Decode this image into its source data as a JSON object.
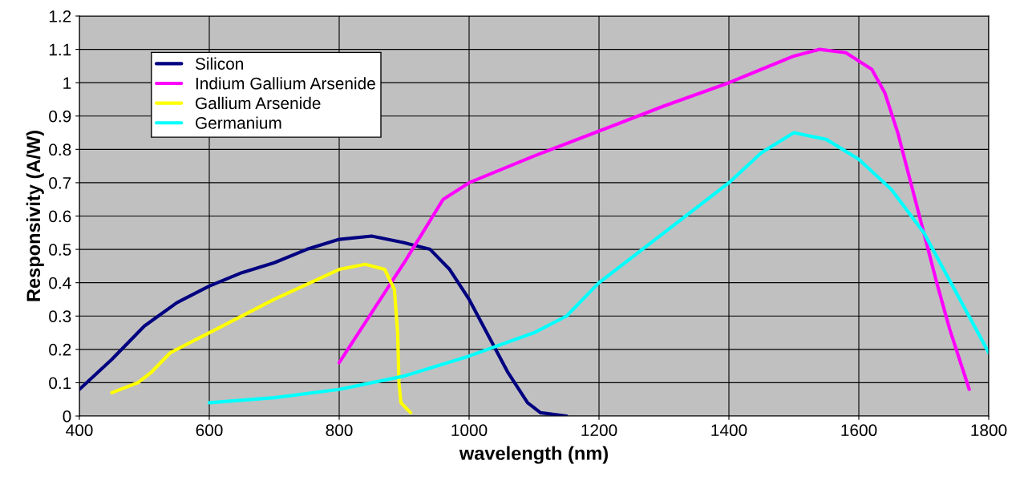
{
  "chart_data": {
    "type": "line",
    "xlabel": "wavelength (nm)",
    "ylabel": "Responsivity (A/W)",
    "xlim": [
      400,
      1800
    ],
    "xticks": [
      400,
      600,
      800,
      1000,
      1200,
      1400,
      1600,
      1800
    ],
    "ylim": [
      0,
      1.2
    ],
    "yticks": [
      0,
      0.1,
      0.2,
      0.3,
      0.4,
      0.5,
      0.6,
      0.7,
      0.8,
      0.9,
      1,
      1.1,
      1.2
    ],
    "grid": true,
    "legend": "top left",
    "marker": "none",
    "line_style": "solid",
    "series": [
      {
        "name": "Silicon",
        "color": "#000080",
        "x": [
          400,
          450,
          500,
          550,
          600,
          650,
          700,
          750,
          800,
          850,
          900,
          940,
          970,
          1000,
          1030,
          1060,
          1090,
          1110,
          1150
        ],
        "values": [
          0.08,
          0.17,
          0.27,
          0.34,
          0.39,
          0.43,
          0.46,
          0.5,
          0.53,
          0.54,
          0.52,
          0.5,
          0.44,
          0.35,
          0.24,
          0.13,
          0.04,
          0.01,
          0.0
        ]
      },
      {
        "name": "Indium Gallium Arsenide",
        "color": "#ff00ff",
        "x": [
          800,
          900,
          960,
          1000,
          1100,
          1200,
          1300,
          1400,
          1450,
          1500,
          1540,
          1580,
          1620,
          1640,
          1660,
          1680,
          1700,
          1720,
          1740,
          1770
        ],
        "values": [
          0.16,
          0.46,
          0.65,
          0.7,
          0.78,
          0.855,
          0.93,
          1.0,
          1.04,
          1.08,
          1.1,
          1.09,
          1.04,
          0.97,
          0.85,
          0.7,
          0.55,
          0.4,
          0.26,
          0.08
        ]
      },
      {
        "name": "Gallium Arsenide",
        "color": "#ffff00",
        "x": [
          450,
          490,
          510,
          540,
          600,
          700,
          800,
          840,
          870,
          885,
          890,
          892,
          895,
          910
        ],
        "values": [
          0.07,
          0.1,
          0.13,
          0.19,
          0.25,
          0.35,
          0.44,
          0.455,
          0.44,
          0.38,
          0.25,
          0.1,
          0.04,
          0.01
        ]
      },
      {
        "name": "Germanium",
        "color": "#00ffff",
        "x": [
          600,
          700,
          800,
          900,
          1000,
          1100,
          1150,
          1200,
          1300,
          1400,
          1450,
          1500,
          1550,
          1600,
          1650,
          1700,
          1800
        ],
        "values": [
          0.04,
          0.055,
          0.08,
          0.12,
          0.18,
          0.25,
          0.3,
          0.4,
          0.55,
          0.7,
          0.79,
          0.85,
          0.83,
          0.77,
          0.68,
          0.55,
          0.19
        ]
      }
    ]
  }
}
